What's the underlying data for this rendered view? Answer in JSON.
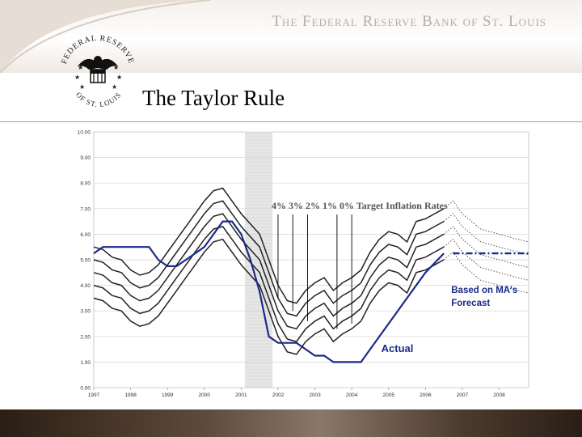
{
  "header": {
    "org_name": "The Federal Reserve Bank of St. Louis",
    "slide_title": "The Taylor Rule",
    "seal_text_top": "FEDERAL RESERVE",
    "seal_text_bottom": "OF ST. LOUIS",
    "seal_icon": "eagle-seal-icon"
  },
  "colors": {
    "banner": "#efe9e3",
    "org_text": "#b7aea6",
    "footer": "#4a3a2e",
    "actual_line": "#1a2a88",
    "rate_lines": "#222222",
    "recession_band": "#c8c8c8"
  },
  "chart_data": {
    "type": "line",
    "title": "",
    "xlabel": "",
    "ylabel": "",
    "x_ticks": [
      "1997",
      "1998",
      "1999",
      "2000",
      "2001",
      "2002",
      "2003",
      "2004",
      "2005",
      "2006",
      "2007",
      "2008"
    ],
    "y_ticks": [
      "0.00",
      "1.00",
      "2.00",
      "3.00",
      "4.00",
      "5.00",
      "6.00",
      "7.00",
      "8.00",
      "9.00",
      "10.00"
    ],
    "xlim": [
      1997,
      2008.8
    ],
    "ylim": [
      0,
      10
    ],
    "recession_band": [
      2001.1,
      2001.85
    ],
    "grid": "horizontal",
    "annotations": {
      "target_label": "4% 3%  2% 1% 0%   Target Inflation Rates",
      "forecast_label_1": "Based on MA's",
      "forecast_label_2": "Forecast",
      "actual_label": "Actual"
    },
    "annotation_pointers": [
      {
        "label": "4%",
        "x": 2002.0,
        "y": 6.9
      },
      {
        "label": "3%",
        "x": 2002.4,
        "y": 6.9
      },
      {
        "label": "2%",
        "x": 2002.8,
        "y": 6.9
      },
      {
        "label": "1%",
        "x": 2003.6,
        "y": 6.9
      },
      {
        "label": "0%",
        "x": 2004.0,
        "y": 6.9
      }
    ],
    "x": [
      1997.0,
      1997.25,
      1997.5,
      1997.75,
      1998.0,
      1998.25,
      1998.5,
      1998.75,
      1999.0,
      1999.25,
      1999.5,
      1999.75,
      2000.0,
      2000.25,
      2000.5,
      2000.75,
      2001.0,
      2001.25,
      2001.5,
      2001.75,
      2002.0,
      2002.25,
      2002.5,
      2002.75,
      2003.0,
      2003.25,
      2003.5,
      2003.75,
      2004.0,
      2004.25,
      2004.5,
      2004.75,
      2005.0,
      2005.25,
      2005.5,
      2005.75,
      2006.0,
      2006.25,
      2006.5
    ],
    "series": [
      {
        "name": "4%",
        "values": [
          5.5,
          5.4,
          5.1,
          5.0,
          4.6,
          4.4,
          4.5,
          4.8,
          5.3,
          5.8,
          6.3,
          6.8,
          7.3,
          7.7,
          7.8,
          7.3,
          6.8,
          6.4,
          6.0,
          5.0,
          4.0,
          3.4,
          3.3,
          3.8,
          4.1,
          4.3,
          3.8,
          4.1,
          4.3,
          4.6,
          5.3,
          5.8,
          6.1,
          6.0,
          5.7,
          6.5,
          6.6,
          6.8,
          7.0
        ]
      },
      {
        "name": "3%",
        "values": [
          5.0,
          4.9,
          4.6,
          4.5,
          4.1,
          3.9,
          4.0,
          4.3,
          4.8,
          5.3,
          5.8,
          6.3,
          6.8,
          7.2,
          7.3,
          6.8,
          6.3,
          5.9,
          5.5,
          4.5,
          3.5,
          2.9,
          2.8,
          3.3,
          3.6,
          3.8,
          3.3,
          3.6,
          3.8,
          4.1,
          4.8,
          5.3,
          5.6,
          5.5,
          5.2,
          6.0,
          6.1,
          6.3,
          6.5
        ]
      },
      {
        "name": "2%",
        "values": [
          4.5,
          4.4,
          4.1,
          4.0,
          3.6,
          3.4,
          3.5,
          3.8,
          4.3,
          4.8,
          5.3,
          5.8,
          6.3,
          6.7,
          6.8,
          6.3,
          5.8,
          5.4,
          5.0,
          4.0,
          3.0,
          2.4,
          2.3,
          2.8,
          3.1,
          3.3,
          2.8,
          3.1,
          3.3,
          3.6,
          4.3,
          4.8,
          5.1,
          5.0,
          4.7,
          5.5,
          5.6,
          5.8,
          6.0
        ]
      },
      {
        "name": "1%",
        "values": [
          4.0,
          3.9,
          3.6,
          3.5,
          3.1,
          2.9,
          3.0,
          3.3,
          3.8,
          4.3,
          4.8,
          5.3,
          5.8,
          6.2,
          6.3,
          5.8,
          5.3,
          4.9,
          4.5,
          3.5,
          2.5,
          1.9,
          1.8,
          2.3,
          2.6,
          2.8,
          2.3,
          2.6,
          2.8,
          3.1,
          3.8,
          4.3,
          4.6,
          4.5,
          4.2,
          5.0,
          5.1,
          5.3,
          5.5
        ]
      },
      {
        "name": "0%",
        "values": [
          3.5,
          3.4,
          3.1,
          3.0,
          2.6,
          2.4,
          2.5,
          2.8,
          3.3,
          3.8,
          4.3,
          4.8,
          5.3,
          5.7,
          5.8,
          5.3,
          4.8,
          4.4,
          4.0,
          3.0,
          2.0,
          1.4,
          1.3,
          1.8,
          2.1,
          2.3,
          1.8,
          2.1,
          2.3,
          2.6,
          3.3,
          3.8,
          4.1,
          4.0,
          3.7,
          4.5,
          4.6,
          4.8,
          5.0
        ]
      }
    ],
    "actual": {
      "name": "Actual",
      "x": [
        1997.0,
        1997.25,
        1997.75,
        1998.25,
        1998.5,
        1998.75,
        1999.0,
        1999.25,
        1999.75,
        2000.0,
        2000.25,
        2000.5,
        2000.75,
        2001.0,
        2001.25,
        2001.5,
        2001.75,
        2002.0,
        2002.5,
        2002.75,
        2003.0,
        2003.25,
        2003.5,
        2003.75,
        2004.25,
        2004.5,
        2005.0,
        2005.5,
        2006.0,
        2006.5
      ],
      "values": [
        5.25,
        5.5,
        5.5,
        5.5,
        5.5,
        5.0,
        4.75,
        4.75,
        5.25,
        5.5,
        6.0,
        6.5,
        6.5,
        6.0,
        5.0,
        3.75,
        2.0,
        1.75,
        1.75,
        1.5,
        1.25,
        1.25,
        1.0,
        1.0,
        1.0,
        1.5,
        2.5,
        3.5,
        4.5,
        5.25
      ]
    },
    "forecast": {
      "name": "Based on MA's Forecast",
      "x": [
        2006.5,
        2006.75,
        2007.0,
        2007.5,
        2008.0,
        2008.5,
        2008.8
      ],
      "series": [
        [
          7.0,
          7.3,
          6.8,
          6.2,
          6.0,
          5.8,
          5.7
        ],
        [
          6.5,
          6.8,
          6.3,
          5.7,
          5.5,
          5.3,
          5.2
        ],
        [
          6.0,
          6.3,
          5.8,
          5.2,
          5.0,
          4.8,
          4.7
        ],
        [
          5.5,
          5.8,
          5.3,
          4.7,
          4.5,
          4.3,
          4.2
        ],
        [
          5.0,
          5.3,
          4.8,
          4.2,
          4.0,
          3.8,
          3.7
        ]
      ],
      "actual_projection": [
        5.25,
        5.25,
        5.25,
        5.25,
        5.25,
        5.25,
        5.25
      ]
    }
  }
}
